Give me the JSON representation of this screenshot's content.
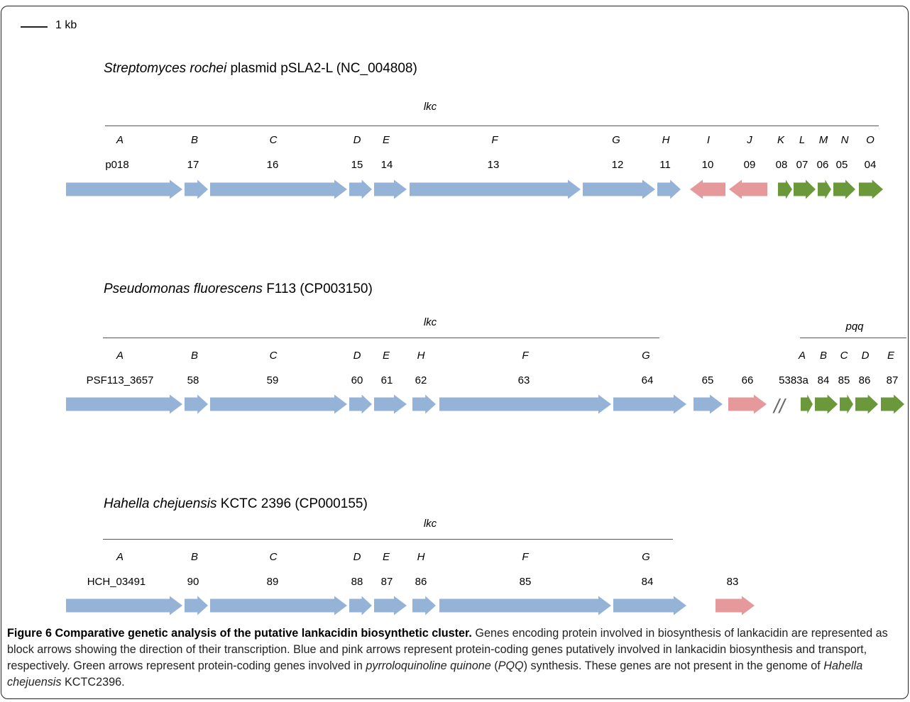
{
  "scale_bar": {
    "label": "1 kb"
  },
  "clusters": [
    {
      "organism": "Streptomyces rochei",
      "rest": " plasmid pSLA2-L (NC_004808)",
      "groups": [
        {
          "name": "lkc"
        }
      ],
      "letters": [
        "A",
        "B",
        "C",
        "D",
        "E",
        "F",
        "G",
        "H",
        "I",
        "J",
        "K",
        "L",
        "M",
        "N",
        "O"
      ],
      "numbers": [
        "p018",
        "17",
        "16",
        "15",
        "14",
        "13",
        "12",
        "11",
        "10",
        "09",
        "08",
        "07",
        "06",
        "05",
        "04"
      ],
      "genes": [
        {
          "color": "blue",
          "dir": "right"
        },
        {
          "color": "blue",
          "dir": "right"
        },
        {
          "color": "blue",
          "dir": "right"
        },
        {
          "color": "blue",
          "dir": "right"
        },
        {
          "color": "blue",
          "dir": "right"
        },
        {
          "color": "blue",
          "dir": "right"
        },
        {
          "color": "blue",
          "dir": "right"
        },
        {
          "color": "blue",
          "dir": "right"
        },
        {
          "color": "pink",
          "dir": "left"
        },
        {
          "color": "pink",
          "dir": "left"
        },
        {
          "color": "green",
          "dir": "right"
        },
        {
          "color": "green",
          "dir": "right"
        },
        {
          "color": "green",
          "dir": "right"
        },
        {
          "color": "green",
          "dir": "right"
        },
        {
          "color": "green",
          "dir": "right"
        }
      ]
    },
    {
      "organism": "Pseudomonas fluorescens",
      "rest": " F113 (CP003150)",
      "groups": [
        {
          "name": "lkc"
        },
        {
          "name": "pqq"
        }
      ],
      "letters": [
        "A",
        "B",
        "C",
        "D",
        "E",
        "H",
        "F",
        "G",
        "A",
        "B",
        "C",
        "D",
        "E"
      ],
      "numbers": [
        "PSF113_3657",
        "58",
        "59",
        "60",
        "61",
        "62",
        "63",
        "64",
        "65",
        "66",
        "5383a",
        "84",
        "85",
        "86",
        "87"
      ],
      "break_mark": "//",
      "genes": [
        {
          "color": "blue",
          "dir": "right"
        },
        {
          "color": "blue",
          "dir": "right"
        },
        {
          "color": "blue",
          "dir": "right"
        },
        {
          "color": "blue",
          "dir": "right"
        },
        {
          "color": "blue",
          "dir": "right"
        },
        {
          "color": "blue",
          "dir": "right"
        },
        {
          "color": "blue",
          "dir": "right"
        },
        {
          "color": "blue",
          "dir": "right"
        },
        {
          "color": "blue",
          "dir": "right"
        },
        {
          "color": "pink",
          "dir": "right"
        },
        {
          "color": "green",
          "dir": "right"
        },
        {
          "color": "green",
          "dir": "right"
        },
        {
          "color": "green",
          "dir": "right"
        },
        {
          "color": "green",
          "dir": "right"
        },
        {
          "color": "green",
          "dir": "right"
        }
      ]
    },
    {
      "organism": "Hahella chejuensis",
      "rest": " KCTC 2396 (CP000155)",
      "groups": [
        {
          "name": "lkc"
        }
      ],
      "letters": [
        "A",
        "B",
        "C",
        "D",
        "E",
        "H",
        "F",
        "G"
      ],
      "numbers": [
        "HCH_03491",
        "90",
        "89",
        "88",
        "87",
        "86",
        "85",
        "84",
        "83"
      ],
      "genes": [
        {
          "color": "blue",
          "dir": "right"
        },
        {
          "color": "blue",
          "dir": "right"
        },
        {
          "color": "blue",
          "dir": "right"
        },
        {
          "color": "blue",
          "dir": "right"
        },
        {
          "color": "blue",
          "dir": "right"
        },
        {
          "color": "blue",
          "dir": "right"
        },
        {
          "color": "blue",
          "dir": "right"
        },
        {
          "color": "blue",
          "dir": "right"
        },
        {
          "color": "pink",
          "dir": "right"
        }
      ]
    }
  ],
  "colors": {
    "blue": "#95b3d7",
    "pink": "#e6999b",
    "green": "#6a983a"
  },
  "caption": {
    "bold": "Figure 6 Comparative genetic analysis of the putative lankacidin biosynthetic cluster.",
    "text1": " Genes encoding protein involved in biosynthesis of lankacidin are represented as block arrows showing the direction of their transcription. Blue and pink arrows represent protein-coding genes putatively involved in lankacidin biosynthesis and transport, respectively. Green arrows represent protein-coding genes involved in ",
    "italic1": "pyrroloquinoline quinone",
    "text2": " (",
    "italic2": "PQQ",
    "text3": ") synthesis. These genes are not present in the genome of ",
    "italic3": "Hahella chejuensis",
    "text4": " KCTC2396."
  }
}
